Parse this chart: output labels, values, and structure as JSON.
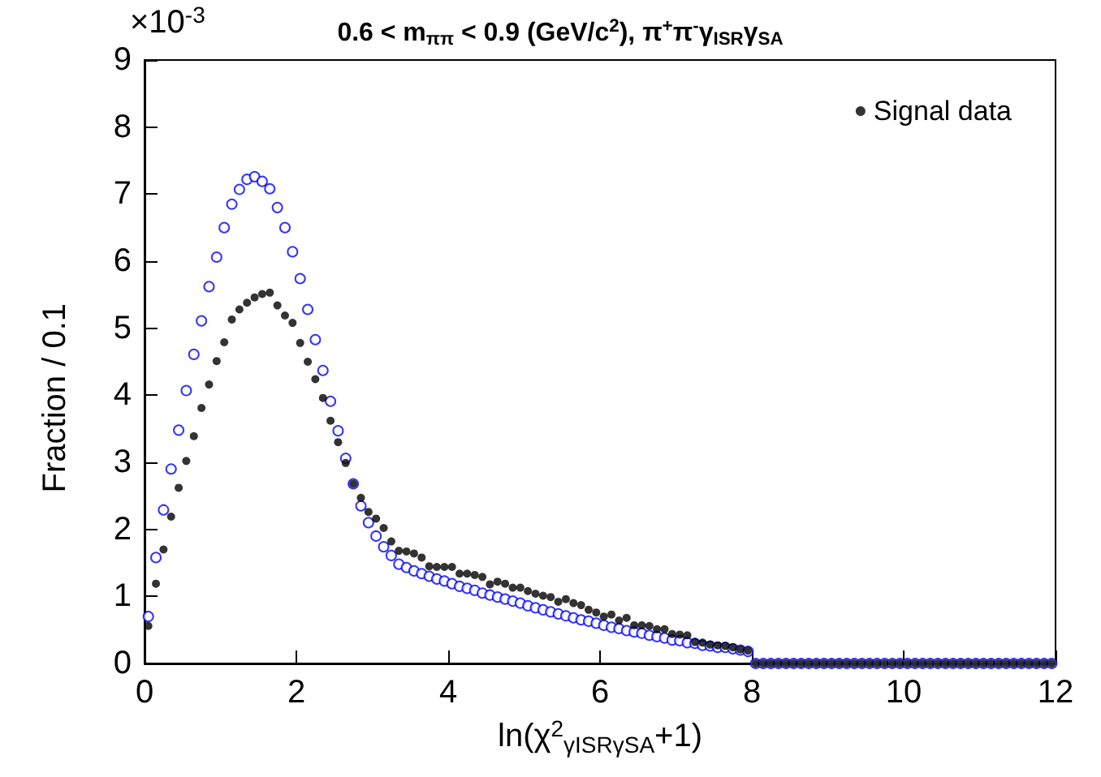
{
  "chart_data": {
    "type": "scatter",
    "title": "0.6 < m$_{ππ}$ < 0.9 (GeV/c$^{2}$), π$^{+}$π$^{-}$γ$_{ISR}$γ$_{SA}$",
    "xlabel": "ln(χ$^{2}$$_{γISRγSA}$+1)",
    "ylabel": "Fraction / 0.1",
    "annotations": [
      "×10$^{-3}$"
    ],
    "x": [
      0.05,
      0.15,
      0.25,
      0.35,
      0.45,
      0.55,
      0.65,
      0.75,
      0.85,
      0.95,
      1.05,
      1.15,
      1.25,
      1.35,
      1.45,
      1.55,
      1.65,
      1.75,
      1.85,
      1.95,
      2.05,
      2.15,
      2.25,
      2.35,
      2.45,
      2.55,
      2.65,
      2.75,
      2.85,
      2.95,
      3.05,
      3.15,
      3.25,
      3.35,
      3.45,
      3.55,
      3.65,
      3.75,
      3.85,
      3.95,
      4.05,
      4.15,
      4.25,
      4.35,
      4.45,
      4.55,
      4.65,
      4.75,
      4.85,
      4.95,
      5.05,
      5.15,
      5.25,
      5.35,
      5.45,
      5.55,
      5.65,
      5.75,
      5.85,
      5.95,
      6.05,
      6.15,
      6.25,
      6.35,
      6.45,
      6.55,
      6.65,
      6.75,
      6.85,
      6.95,
      7.05,
      7.15,
      7.25,
      7.35,
      7.45,
      7.55,
      7.65,
      7.75,
      7.85,
      7.95,
      8.05,
      8.15,
      8.25,
      8.35,
      8.45,
      8.55,
      8.65,
      8.75,
      8.85,
      8.95,
      9.05,
      9.15,
      9.25,
      9.35,
      9.45,
      9.55,
      9.65,
      9.75,
      9.85,
      9.95,
      10.05,
      10.15,
      10.25,
      10.35,
      10.45,
      10.55,
      10.65,
      10.75,
      10.85,
      10.95,
      11.05,
      11.15,
      11.25,
      11.35,
      11.45,
      11.55,
      11.65,
      11.75,
      11.85,
      11.95
    ],
    "series": [
      {
        "name": "Signal data",
        "color": "#000000",
        "values": [
          0.56,
          1.19,
          1.7,
          2.19,
          2.62,
          3.02,
          3.39,
          3.81,
          4.16,
          4.51,
          4.79,
          5.13,
          5.28,
          5.38,
          5.46,
          5.51,
          5.53,
          5.34,
          5.19,
          5.08,
          4.78,
          4.5,
          4.24,
          3.96,
          3.62,
          3.3,
          2.99,
          2.68,
          2.47,
          2.26,
          2.16,
          2.02,
          1.82,
          1.68,
          1.67,
          1.64,
          1.58,
          1.45,
          1.44,
          1.44,
          1.44,
          1.34,
          1.34,
          1.32,
          1.29,
          1.18,
          1.22,
          1.19,
          1.13,
          1.13,
          1.08,
          1.04,
          1.01,
          0.99,
          0.92,
          0.96,
          0.9,
          0.87,
          0.8,
          0.76,
          0.7,
          0.73,
          0.64,
          0.68,
          0.57,
          0.57,
          0.56,
          0.51,
          0.51,
          0.44,
          0.43,
          0.42,
          0.32,
          0.31,
          0.28,
          0.27,
          0.26,
          0.24,
          0.21,
          0.19,
          0,
          0,
          0,
          0,
          0,
          0,
          0,
          0,
          0,
          0,
          0,
          0,
          0,
          0,
          0,
          0,
          0,
          0,
          0,
          0,
          0,
          0,
          0,
          0,
          0,
          0,
          0,
          0,
          0,
          0,
          0,
          0,
          0,
          0,
          0,
          0,
          0,
          0,
          0,
          0
        ]
      },
      {
        "color": "#0000ff",
        "values": [
          0.7,
          1.58,
          2.29,
          2.9,
          3.48,
          4.07,
          4.61,
          5.11,
          5.62,
          6.06,
          6.5,
          6.85,
          7.07,
          7.22,
          7.26,
          7.19,
          7.08,
          6.8,
          6.5,
          6.14,
          5.74,
          5.28,
          4.83,
          4.37,
          3.91,
          3.47,
          3.06,
          2.68,
          2.35,
          2.1,
          1.9,
          1.74,
          1.61,
          1.48,
          1.43,
          1.38,
          1.34,
          1.3,
          1.26,
          1.23,
          1.19,
          1.15,
          1.12,
          1.09,
          1.05,
          1.02,
          0.99,
          0.96,
          0.93,
          0.9,
          0.86,
          0.83,
          0.8,
          0.77,
          0.74,
          0.71,
          0.68,
          0.65,
          0.63,
          0.6,
          0.57,
          0.54,
          0.52,
          0.49,
          0.47,
          0.45,
          0.42,
          0.4,
          0.38,
          0.35,
          0.34,
          0.31,
          0.3,
          0.27,
          0.26,
          0.24,
          0.24,
          0.22,
          0.2,
          0.18,
          0,
          0,
          0,
          0,
          0,
          0,
          0,
          0,
          0,
          0,
          0,
          0,
          0,
          0,
          0,
          0,
          0,
          0,
          0,
          0,
          0,
          0,
          0,
          0,
          0,
          0,
          0,
          0,
          0,
          0,
          0,
          0,
          0,
          0,
          0,
          0,
          0,
          0,
          0,
          0
        ]
      }
    ],
    "xlim": [
      0,
      12
    ],
    "ylim": [
      0,
      9
    ],
    "xticks": [
      0,
      2,
      4,
      6,
      8,
      10,
      12
    ],
    "yticks": [
      0,
      1,
      2,
      3,
      4,
      5,
      6,
      7,
      8,
      9
    ],
    "grid": false,
    "legend": "top right",
    "marker": "circle"
  }
}
